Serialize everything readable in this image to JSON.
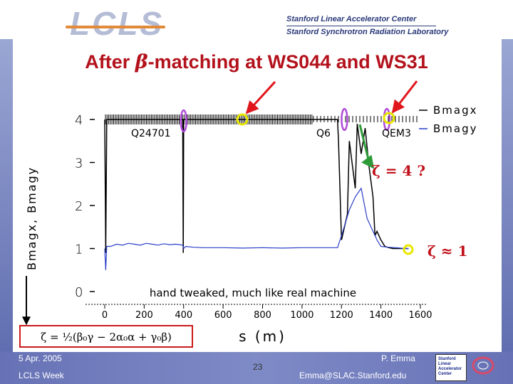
{
  "header": {
    "logo_text": "LCLS",
    "org_line1": "Stanford Linear Accelerator Center",
    "org_line2": "Stanford Synchrotron Radiation Laboratory"
  },
  "slide": {
    "title_prefix": "After ",
    "title_symbol": "β",
    "title_suffix": "-matching at WS044 and WS31"
  },
  "annotations": {
    "q24701": "Q24701",
    "q6": "Q6",
    "qem3": "QEM3",
    "zeta4": "ζ = 4 ?",
    "zeta1": "ζ ≈ 1",
    "hand_tweaked": "hand tweaked, much like real machine",
    "formula": "ζ = ½(β₀γ − 2α₀α + γ₀β)"
  },
  "footer": {
    "date": "5 Apr. 2005",
    "event": "LCLS Week",
    "page": "23",
    "author": "P. Emma",
    "email": "Emma@SLAC.Stanford.edu",
    "slac_logo_lines": [
      "Stanford",
      "Linear",
      "Accelerator",
      "Center"
    ]
  },
  "colors": {
    "title": "#b3121c",
    "red_arrow": "#e0161c",
    "magenta_marker": "#b04ad8",
    "yellow_marker": "#e8e800",
    "green_arrow": "#2e9a38",
    "bmagy_line": "#2a3ec8",
    "bmagx_line": "#000000",
    "slide_band": "#6672b5"
  },
  "chart_data": {
    "type": "line",
    "xlabel": "s (m)",
    "ylabel": "Bmagx, Bmagy",
    "xlim": [
      -50,
      1600
    ],
    "ylim": [
      0,
      4
    ],
    "xticks": [
      0,
      200,
      400,
      600,
      800,
      1000,
      1200,
      1400,
      1600
    ],
    "yticks": [
      0,
      1,
      2,
      3,
      4
    ],
    "grid": false,
    "legend_position": "top-right",
    "series": [
      {
        "name": "Bmagx",
        "color": "#000000",
        "x": [
          0,
          5,
          10,
          395,
          398,
          400,
          410,
          415,
          1180,
          1185,
          1200,
          1230,
          1240,
          1270,
          1280,
          1300,
          1320,
          1340,
          1360,
          1370,
          1380,
          1400,
          1420,
          1440,
          1460,
          1480,
          1500,
          1520,
          1540
        ],
        "y": [
          4.0,
          0.9,
          4.0,
          4.0,
          0.9,
          4.0,
          4.0,
          4.0,
          4.0,
          3.5,
          1.2,
          1.8,
          3.5,
          2.4,
          3.9,
          3.2,
          3.8,
          2.9,
          2.2,
          1.3,
          1.4,
          1.2,
          1.05,
          1.02,
          1.0,
          1.0,
          1.0,
          1.0,
          1.0
        ]
      },
      {
        "name": "Bmagy",
        "color": "#2a3ec8",
        "x": [
          0,
          5,
          10,
          30,
          60,
          90,
          120,
          150,
          180,
          210,
          240,
          270,
          300,
          330,
          360,
          395,
          400,
          410,
          450,
          500,
          600,
          700,
          800,
          900,
          1000,
          1100,
          1150,
          1180,
          1200,
          1240,
          1270,
          1300,
          1330,
          1360,
          1380,
          1400,
          1440,
          1480,
          1520,
          1540
        ],
        "y": [
          1.0,
          0.5,
          1.05,
          1.05,
          1.1,
          1.08,
          1.12,
          1.1,
          1.08,
          1.12,
          1.1,
          1.08,
          1.11,
          1.09,
          1.1,
          1.08,
          1.0,
          1.05,
          1.03,
          1.02,
          1.02,
          1.01,
          1.02,
          1.01,
          1.02,
          1.02,
          1.02,
          1.02,
          1.3,
          1.9,
          2.2,
          2.4,
          1.7,
          1.4,
          1.2,
          1.05,
          1.03,
          1.02,
          1.0,
          1.0
        ]
      }
    ]
  }
}
